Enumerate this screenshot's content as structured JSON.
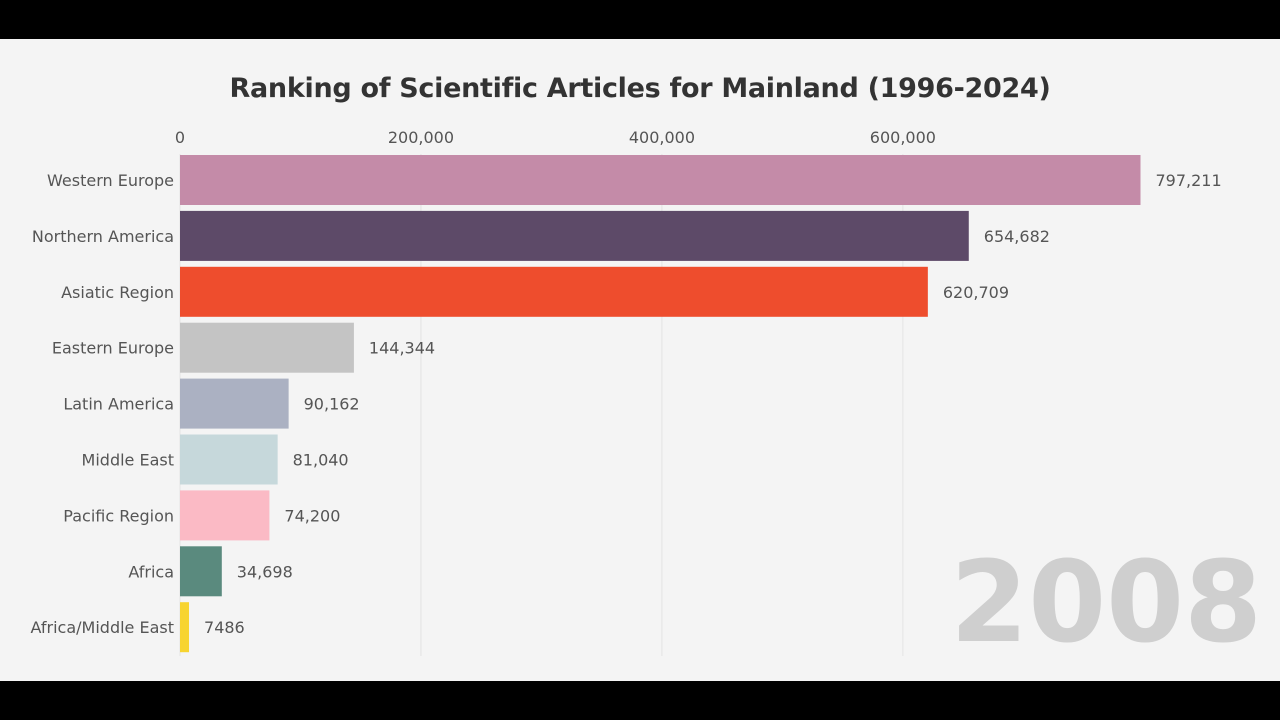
{
  "chart_data": {
    "type": "bar",
    "orientation": "horizontal",
    "title": "Ranking of Scientific Articles for Mainland (1996-2024)",
    "year": "2008",
    "xlim": [
      0,
      800000
    ],
    "x_ticks": [
      0,
      200000,
      400000,
      600000
    ],
    "x_tick_labels": [
      "0",
      "200,000",
      "400,000",
      "600,000"
    ],
    "grid": true,
    "axis_position": "top",
    "categories": [
      "Western Europe",
      "Northern America",
      "Asiatic Region",
      "Eastern Europe",
      "Latin America",
      "Middle East",
      "Pacific Region",
      "Africa",
      "Africa/Middle East"
    ],
    "values": [
      797211,
      654682,
      620709,
      144344,
      90162,
      81040,
      74200,
      34698,
      7486
    ],
    "value_labels": [
      "797,211",
      "654,682",
      "620,709",
      "144,344",
      "90,162",
      "81,040",
      "74,200",
      "34,698",
      "7486"
    ],
    "colors": [
      "#c48ba8",
      "#5d4a68",
      "#ee4d2d",
      "#c4c4c4",
      "#abb1c2",
      "#c6d8db",
      "#fbbac5",
      "#5a8a7e",
      "#f7d430"
    ]
  }
}
